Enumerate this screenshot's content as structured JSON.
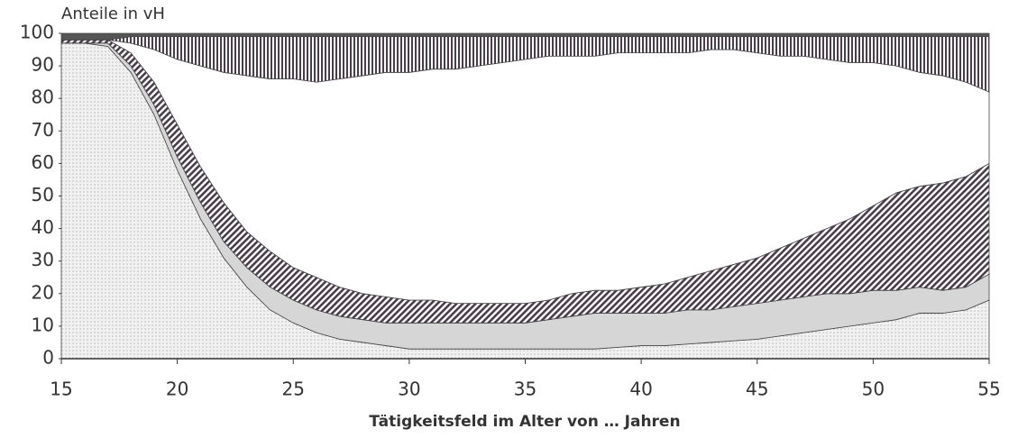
{
  "chart_data": {
    "type": "stacked_area",
    "title": "Anteile in vH",
    "x_label": "Tätigkeitsfeld im Alter von … Jahren",
    "x": [
      15,
      16,
      17,
      18,
      19,
      20,
      21,
      22,
      23,
      24,
      25,
      26,
      27,
      28,
      29,
      30,
      31,
      32,
      33,
      34,
      35,
      36,
      37,
      38,
      39,
      40,
      41,
      42,
      43,
      44,
      45,
      46,
      47,
      48,
      49,
      50,
      51,
      52,
      53,
      54,
      55
    ],
    "xlim": [
      15,
      55
    ],
    "xticks": [
      15,
      20,
      25,
      30,
      35,
      40,
      45,
      50,
      55
    ],
    "ylim": [
      0,
      100
    ],
    "yticks": [
      0,
      10,
      20,
      30,
      40,
      50,
      60,
      70,
      80,
      90,
      100
    ],
    "series": [
      {
        "color": "#eeeeee",
        "pattern": "dots",
        "values": [
          97,
          97,
          96,
          88,
          75,
          58,
          43,
          31,
          22,
          15,
          11,
          8,
          6,
          5,
          4,
          3,
          3,
          3,
          3,
          3,
          3,
          3,
          3,
          3,
          3.5,
          4,
          4,
          4.5,
          5,
          5.5,
          6,
          7,
          8,
          9,
          10,
          11,
          12,
          14,
          14,
          15,
          18
        ]
      },
      {
        "color": "#d6d6d6",
        "pattern": "solid",
        "values": [
          0,
          0,
          1,
          2,
          3,
          4,
          5,
          5,
          6,
          7,
          7,
          7,
          7,
          7,
          7,
          8,
          8,
          8,
          8,
          8,
          8,
          9,
          10,
          11,
          10.5,
          10,
          10,
          10.5,
          10,
          10.5,
          11,
          11,
          11,
          11,
          10,
          10,
          9,
          8,
          7,
          7,
          8
        ]
      },
      {
        "color": "#4a3d4a",
        "pattern": "diagonal",
        "values": [
          1,
          1,
          1,
          4,
          7,
          10,
          11,
          12,
          11,
          11,
          10,
          10,
          9,
          8,
          8,
          7,
          7,
          6,
          6,
          6,
          6,
          6,
          7,
          7,
          7,
          8,
          9,
          10,
          12,
          13,
          14,
          16,
          18,
          20,
          23,
          26,
          30,
          31,
          33,
          34,
          34
        ]
      },
      {
        "color": "#ffffff",
        "pattern": "solid",
        "values": [
          0,
          0,
          0,
          3,
          10,
          20,
          31,
          40,
          48,
          53,
          58,
          60,
          64,
          67,
          69,
          70,
          71,
          72,
          73,
          74,
          75,
          75,
          73,
          72,
          73,
          72,
          71,
          69,
          68,
          66,
          63,
          59,
          56,
          52,
          48,
          44,
          39,
          35,
          33,
          29,
          22
        ]
      },
      {
        "color": "#4a3d4a",
        "pattern": "vertical",
        "values": [
          0,
          0,
          0,
          2,
          4,
          7,
          9,
          11,
          12,
          13,
          13,
          14,
          13,
          12,
          11,
          11,
          10,
          10,
          9,
          8,
          7,
          6,
          6,
          6,
          5,
          5,
          5,
          5,
          4,
          4,
          5,
          6,
          6,
          7,
          8,
          8,
          9,
          11,
          12,
          14,
          17
        ]
      },
      {
        "color": "#555555",
        "pattern": "solid",
        "values": [
          2,
          2,
          2,
          1,
          1,
          1,
          1,
          1,
          1,
          1,
          1,
          1,
          1,
          1,
          1,
          1,
          1,
          1,
          1,
          1,
          1,
          1,
          1,
          1,
          1,
          1,
          1,
          1,
          1,
          1,
          1,
          1,
          1,
          1,
          1,
          1,
          1,
          1,
          1,
          1,
          1
        ]
      }
    ]
  }
}
